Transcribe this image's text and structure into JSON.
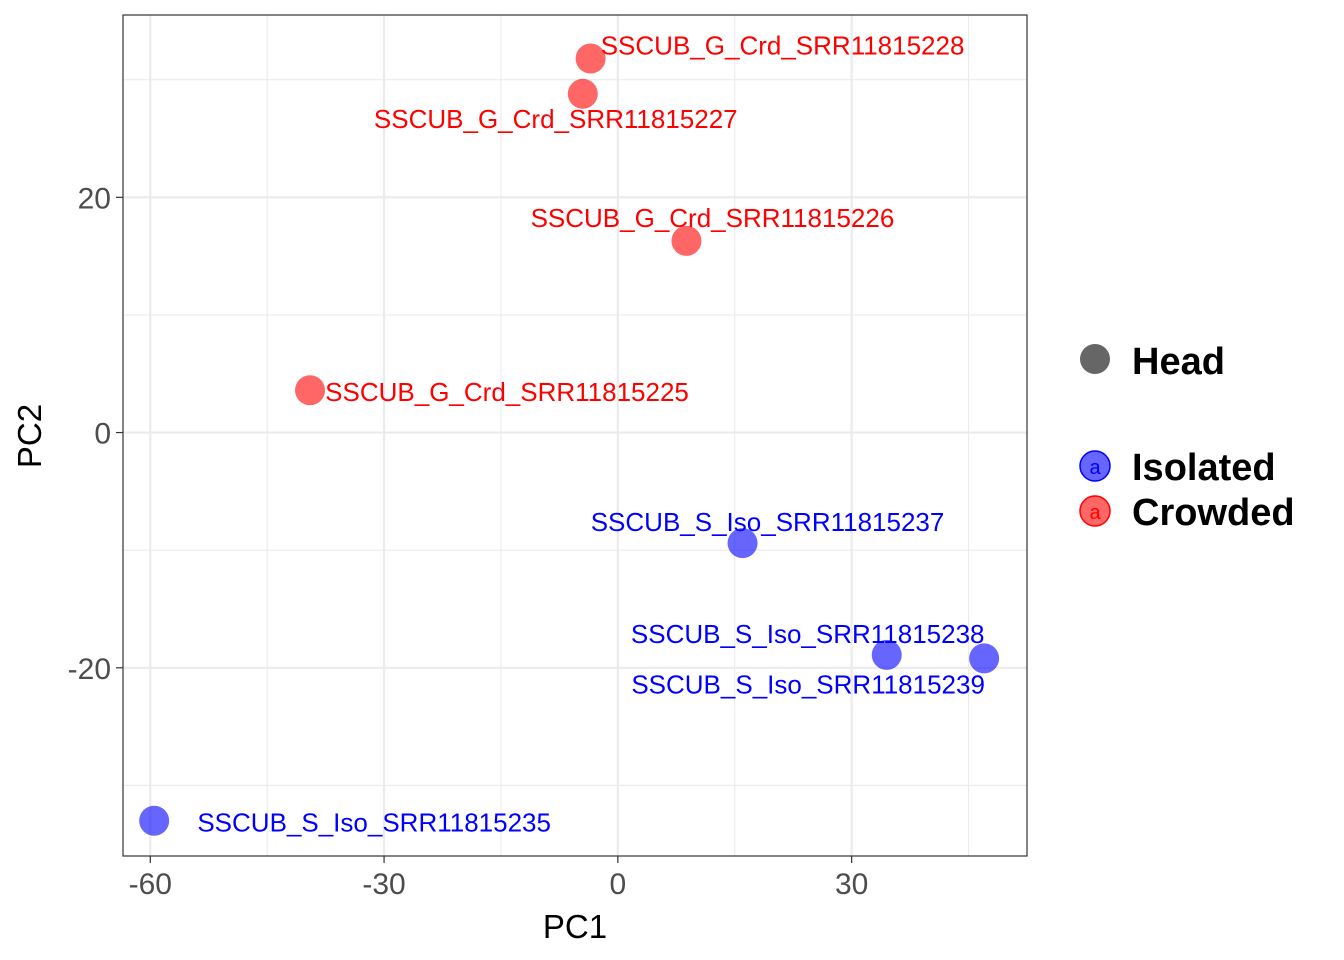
{
  "chart_data": {
    "type": "scatter",
    "xlabel": "PC1",
    "ylabel": "PC2",
    "xlim": [
      -63.5,
      52.5
    ],
    "ylim": [
      -36,
      35.5
    ],
    "x_ticks": [
      -60,
      -30,
      0,
      30
    ],
    "x_tick_labels": [
      "-60",
      "-30",
      "0",
      "30"
    ],
    "y_ticks": [
      -20,
      0,
      20
    ],
    "y_tick_labels": [
      "-20",
      "0",
      "20"
    ],
    "grid": true,
    "legend_position": "right",
    "legend": {
      "shape_title": "Head",
      "shape_color": "#666666",
      "groups": [
        {
          "name": "Isolated",
          "color": "#0000ff",
          "key_glyph": "a"
        },
        {
          "name": "Crowded",
          "color": "#ff0000",
          "key_glyph": "a"
        }
      ]
    },
    "points": [
      {
        "label": "SSCUB_G_Crd_SRR11815228",
        "group": "Crowded",
        "x": -3.5,
        "y": 31.8
      },
      {
        "label": "SSCUB_G_Crd_SRR11815227",
        "group": "Crowded",
        "x": -4.5,
        "y": 28.8
      },
      {
        "label": "SSCUB_G_Crd_SRR11815226",
        "group": "Crowded",
        "x": 8.8,
        "y": 16.3
      },
      {
        "label": "SSCUB_G_Crd_SRR11815225",
        "group": "Crowded",
        "x": -39.5,
        "y": 3.6
      },
      {
        "label": "SSCUB_S_Iso_SRR11815237",
        "group": "Isolated",
        "x": 16.0,
        "y": -9.4
      },
      {
        "label": "SSCUB_S_Iso_SRR11815238",
        "group": "Isolated",
        "x": 34.5,
        "y": -18.9
      },
      {
        "label": "SSCUB_S_Iso_SRR11815239",
        "group": "Isolated",
        "x": 47.0,
        "y": -19.2
      },
      {
        "label": "SSCUB_S_Iso_SRR11815235",
        "group": "Isolated",
        "x": -59.5,
        "y": -33.0
      }
    ]
  }
}
